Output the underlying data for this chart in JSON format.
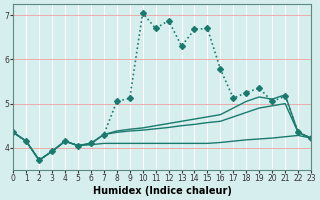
{
  "xlabel": "Humidex (Indice chaleur)",
  "ylabel": "",
  "bg_color": "#d6eeee",
  "grid_color": "#ffffff",
  "line_color": "#1a7a6e",
  "xlim": [
    0,
    23
  ],
  "ylim": [
    3.5,
    7.25
  ],
  "xticks": [
    0,
    1,
    2,
    3,
    4,
    5,
    6,
    7,
    8,
    9,
    10,
    11,
    12,
    13,
    14,
    15,
    16,
    17,
    18,
    19,
    20,
    21,
    22,
    23
  ],
  "yticks": [
    4,
    5,
    6,
    7
  ],
  "curves": [
    {
      "x": [
        0,
        1,
        2,
        3,
        4,
        5,
        6,
        7,
        8,
        9,
        10,
        11,
        12,
        13,
        14,
        15,
        16,
        17,
        18,
        19,
        20,
        21,
        22,
        23
      ],
      "y": [
        4.35,
        4.15,
        3.72,
        3.92,
        4.15,
        4.05,
        4.1,
        4.3,
        5.05,
        5.12,
        7.05,
        6.7,
        6.88,
        6.3,
        6.68,
        6.7,
        5.78,
        5.12,
        5.25,
        5.35,
        5.05,
        5.17,
        4.35,
        4.22
      ],
      "style": "dotted",
      "marker": "D",
      "markersize": 3,
      "linewidth": 1.2
    },
    {
      "x": [
        0,
        1,
        2,
        3,
        4,
        5,
        6,
        7,
        8,
        9,
        10,
        11,
        12,
        13,
        14,
        15,
        16,
        17,
        18,
        19,
        20,
        21,
        22,
        23
      ],
      "y": [
        4.35,
        4.15,
        3.72,
        3.92,
        4.15,
        4.05,
        4.1,
        4.3,
        4.38,
        4.42,
        4.45,
        4.5,
        4.55,
        4.6,
        4.65,
        4.7,
        4.75,
        4.9,
        5.05,
        5.15,
        5.1,
        5.2,
        4.35,
        4.22
      ],
      "style": "solid",
      "marker": null,
      "markersize": 0,
      "linewidth": 1.0
    },
    {
      "x": [
        0,
        1,
        2,
        3,
        4,
        5,
        6,
        7,
        8,
        9,
        10,
        11,
        12,
        13,
        14,
        15,
        16,
        17,
        18,
        19,
        20,
        21,
        22,
        23
      ],
      "y": [
        4.35,
        4.15,
        3.72,
        3.92,
        4.15,
        4.05,
        4.1,
        4.3,
        4.35,
        4.38,
        4.4,
        4.43,
        4.46,
        4.5,
        4.53,
        4.57,
        4.6,
        4.7,
        4.8,
        4.9,
        4.95,
        5.0,
        4.35,
        4.22
      ],
      "style": "solid",
      "marker": null,
      "markersize": 0,
      "linewidth": 1.0
    },
    {
      "x": [
        0,
        1,
        2,
        3,
        4,
        5,
        6,
        7,
        8,
        9,
        10,
        11,
        12,
        13,
        14,
        15,
        16,
        17,
        18,
        19,
        20,
        21,
        22,
        23
      ],
      "y": [
        4.35,
        4.15,
        3.72,
        3.92,
        4.15,
        4.05,
        4.07,
        4.1,
        4.1,
        4.1,
        4.1,
        4.1,
        4.1,
        4.1,
        4.1,
        4.1,
        4.12,
        4.15,
        4.18,
        4.2,
        4.22,
        4.25,
        4.28,
        4.22
      ],
      "style": "solid",
      "marker": null,
      "markersize": 0,
      "linewidth": 1.0
    }
  ]
}
